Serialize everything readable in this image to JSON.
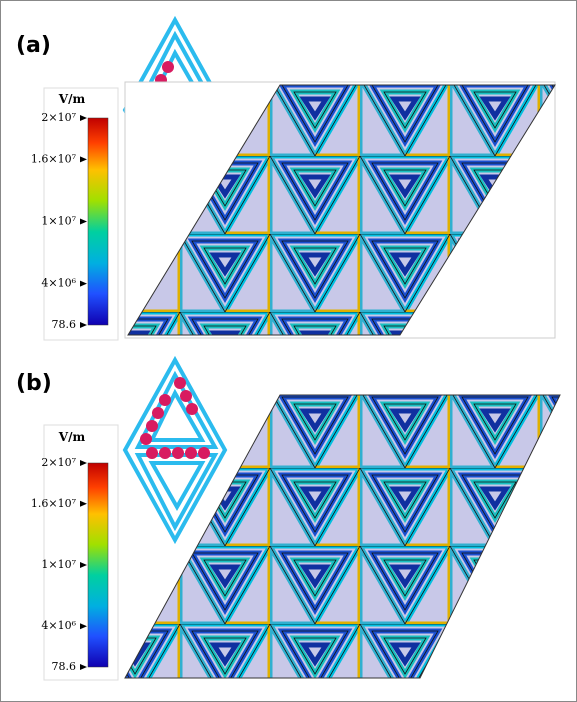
{
  "panels": [
    {
      "label": "(a)",
      "colorbar": {
        "unit": "V/m",
        "ticks": [
          {
            "value": 20000000,
            "label": "2×10⁷"
          },
          {
            "value": 16000000,
            "label": "1.6×10⁷"
          },
          {
            "value": 10000000,
            "label": "1×10⁷"
          },
          {
            "value": 4000000,
            "label": "4×10⁶"
          },
          78.6
        ]
      }
    },
    {
      "label": "(b)",
      "colorbar": {
        "unit": "V/m",
        "ticks": [
          {
            "value": 20000000,
            "label": "2×10⁷"
          },
          {
            "value": 16000000,
            "label": "1.6×10⁷"
          },
          {
            "value": 10000000,
            "label": "1×10⁷"
          },
          {
            "value": 4000000,
            "label": "4×10⁶"
          },
          78.6
        ]
      }
    }
  ]
}
